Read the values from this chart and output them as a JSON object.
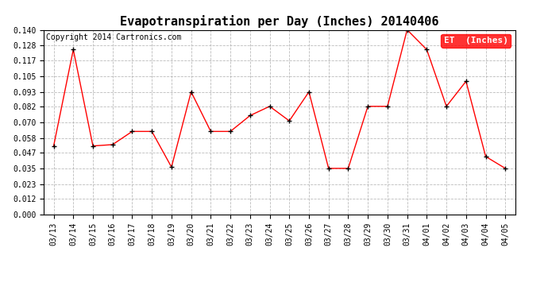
{
  "title": "Evapotranspiration per Day (Inches) 20140406",
  "copyright": "Copyright 2014 Cartronics.com",
  "legend_label": "ET  (Inches)",
  "dates": [
    "03/13",
    "03/14",
    "03/15",
    "03/16",
    "03/17",
    "03/18",
    "03/19",
    "03/20",
    "03/21",
    "03/22",
    "03/23",
    "03/24",
    "03/25",
    "03/26",
    "03/27",
    "03/28",
    "03/29",
    "03/30",
    "03/31",
    "04/01",
    "04/02",
    "04/03",
    "04/04",
    "04/05"
  ],
  "values": [
    0.052,
    0.125,
    0.052,
    0.053,
    0.063,
    0.063,
    0.036,
    0.093,
    0.063,
    0.063,
    0.075,
    0.082,
    0.071,
    0.093,
    0.035,
    0.035,
    0.082,
    0.082,
    0.14,
    0.125,
    0.082,
    0.101,
    0.044,
    0.035
  ],
  "ylim": [
    0.0,
    0.14
  ],
  "yticks": [
    0.0,
    0.012,
    0.023,
    0.035,
    0.047,
    0.058,
    0.07,
    0.082,
    0.093,
    0.105,
    0.117,
    0.128,
    0.14
  ],
  "line_color": "red",
  "marker": "+",
  "marker_color": "black",
  "marker_size": 5,
  "marker_lw": 1.0,
  "line_width": 1.0,
  "bg_color": "#ffffff",
  "plot_bg_color": "#ffffff",
  "grid_color": "#aaaaaa",
  "title_fontsize": 11,
  "tick_fontsize": 7,
  "copyright_fontsize": 7,
  "legend_bg": "red",
  "legend_text_color": "white",
  "legend_fontsize": 8
}
